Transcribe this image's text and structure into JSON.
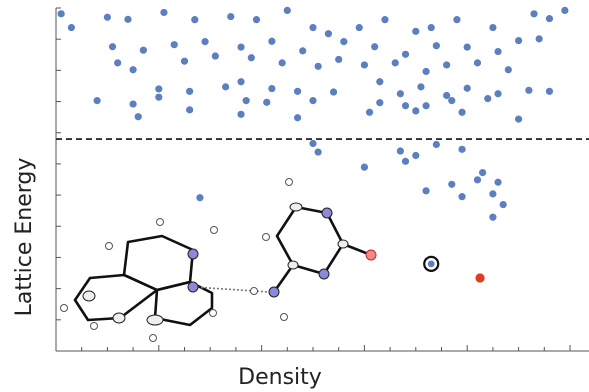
{
  "chart_data": {
    "type": "scatter",
    "xlabel": "Density",
    "ylabel": "Lattice Energy",
    "xlim": [
      0,
      100
    ],
    "ylim": [
      0,
      100
    ],
    "grid": false,
    "threshold_y": 61.8,
    "series": [
      {
        "values": [
          [
            1,
            98.3
          ],
          [
            3,
            94.3
          ],
          [
            10,
            97.3
          ],
          [
            14,
            96.7
          ],
          [
            21,
            98.7
          ],
          [
            27,
            96.6
          ],
          [
            34,
            97.5
          ],
          [
            39,
            96.6
          ],
          [
            45,
            99.3
          ],
          [
            50,
            94.3
          ],
          [
            53,
            92.5
          ],
          [
            59,
            94.3
          ],
          [
            64,
            96.6
          ],
          [
            70,
            93.2
          ],
          [
            73,
            94.3
          ],
          [
            78,
            96.6
          ],
          [
            85,
            94.3
          ],
          [
            93,
            98.3
          ],
          [
            96,
            96.9
          ],
          [
            99,
            99.3
          ],
          [
            11,
            88.7
          ],
          [
            17,
            87.7
          ],
          [
            23,
            89.3
          ],
          [
            29,
            90.2
          ],
          [
            36,
            88.6
          ],
          [
            42,
            90.3
          ],
          [
            48,
            87.5
          ],
          [
            56,
            90.2
          ],
          [
            62,
            88.7
          ],
          [
            68,
            86.5
          ],
          [
            74,
            89.0
          ],
          [
            80,
            88.6
          ],
          [
            86,
            87.3
          ],
          [
            90,
            90.5
          ],
          [
            94,
            91.0
          ],
          [
            12,
            84.0
          ],
          [
            15,
            82.0
          ],
          [
            25,
            84.5
          ],
          [
            31,
            86.0
          ],
          [
            38,
            85.5
          ],
          [
            44,
            84.0
          ],
          [
            51,
            83.0
          ],
          [
            55,
            85.0
          ],
          [
            60,
            83.4
          ],
          [
            66,
            84.0
          ],
          [
            72,
            81.5
          ],
          [
            76,
            83.4
          ],
          [
            82,
            84.0
          ],
          [
            88,
            82.0
          ],
          [
            20,
            76.4
          ],
          [
            26,
            75.7
          ],
          [
            33,
            77.0
          ],
          [
            36,
            78.5
          ],
          [
            42,
            76.5
          ],
          [
            47,
            75.7
          ],
          [
            54,
            75.5
          ],
          [
            63,
            78.5
          ],
          [
            67,
            75.0
          ],
          [
            71,
            77.0
          ],
          [
            76,
            74.5
          ],
          [
            80,
            76.6
          ],
          [
            86,
            75.0
          ],
          [
            92,
            76.0
          ],
          [
            96,
            75.7
          ],
          [
            8,
            73.0
          ],
          [
            15,
            72.0
          ],
          [
            20,
            74.0
          ],
          [
            37,
            73.0
          ],
          [
            41,
            72.5
          ],
          [
            50,
            73.0
          ],
          [
            63,
            72.4
          ],
          [
            72,
            71.5
          ],
          [
            77,
            73.0
          ],
          [
            84,
            73.6
          ],
          [
            16,
            68.3
          ],
          [
            26,
            70.3
          ],
          [
            36,
            69.0
          ],
          [
            47,
            68.0
          ],
          [
            61,
            69.6
          ],
          [
            68,
            71.5
          ],
          [
            70,
            70.0
          ],
          [
            79,
            69.6
          ],
          [
            90,
            67.6
          ],
          [
            50,
            60.5
          ],
          [
            51,
            58.0
          ],
          [
            67,
            58.3
          ],
          [
            74,
            60.2
          ],
          [
            79,
            58.8
          ],
          [
            28,
            44.7
          ],
          [
            60,
            53.6
          ],
          [
            68,
            55.3
          ],
          [
            70,
            57.0
          ],
          [
            77,
            48.6
          ],
          [
            79,
            45.0
          ],
          [
            72,
            46.7
          ],
          [
            82,
            49.9
          ],
          [
            85,
            45.8
          ],
          [
            83,
            52.0
          ],
          [
            86,
            49.2
          ],
          [
            87,
            42.7
          ],
          [
            85,
            39.0
          ]
        ]
      }
    ],
    "highlight_points": [
      {
        "value": [
          73,
          25.4
        ],
        "style": "circled"
      },
      {
        "value": [
          82.5,
          21.3
        ],
        "style": "red"
      }
    ]
  }
}
